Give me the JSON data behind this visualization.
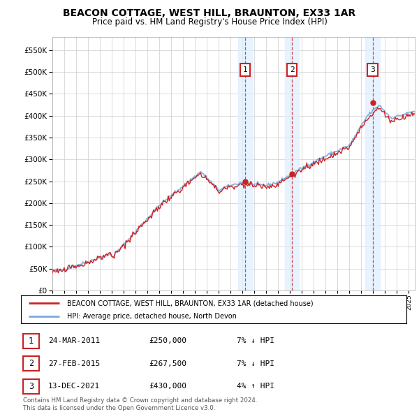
{
  "title": "BEACON COTTAGE, WEST HILL, BRAUNTON, EX33 1AR",
  "subtitle": "Price paid vs. HM Land Registry's House Price Index (HPI)",
  "legend_property": "BEACON COTTAGE, WEST HILL, BRAUNTON, EX33 1AR (detached house)",
  "legend_hpi": "HPI: Average price, detached house, North Devon",
  "transactions": [
    {
      "num": 1,
      "date": "24-MAR-2011",
      "price": 250000,
      "pct": "7%",
      "dir": "↓",
      "year": 2011.23
    },
    {
      "num": 2,
      "date": "27-FEB-2015",
      "price": 267500,
      "pct": "7%",
      "dir": "↓",
      "year": 2015.16
    },
    {
      "num": 3,
      "date": "13-DEC-2021",
      "price": 430000,
      "pct": "4%",
      "dir": "↑",
      "year": 2021.95
    }
  ],
  "copyright": "Contains HM Land Registry data © Crown copyright and database right 2024.\nThis data is licensed under the Open Government Licence v3.0.",
  "hpi_color": "#7aaadd",
  "property_color": "#cc2222",
  "shading_color": "#ddeeff",
  "grid_color": "#cccccc",
  "background_color": "#ffffff",
  "ylim": [
    0,
    580000
  ],
  "xlim_start": 1995.0,
  "xlim_end": 2025.5,
  "yticks": [
    0,
    50000,
    100000,
    150000,
    200000,
    250000,
    300000,
    350000,
    400000,
    450000,
    500000,
    550000
  ],
  "xtick_years": [
    1995,
    1996,
    1997,
    1998,
    1999,
    2000,
    2001,
    2002,
    2003,
    2004,
    2005,
    2006,
    2007,
    2008,
    2009,
    2010,
    2011,
    2012,
    2013,
    2014,
    2015,
    2016,
    2017,
    2018,
    2019,
    2020,
    2021,
    2022,
    2023,
    2024,
    2025
  ]
}
